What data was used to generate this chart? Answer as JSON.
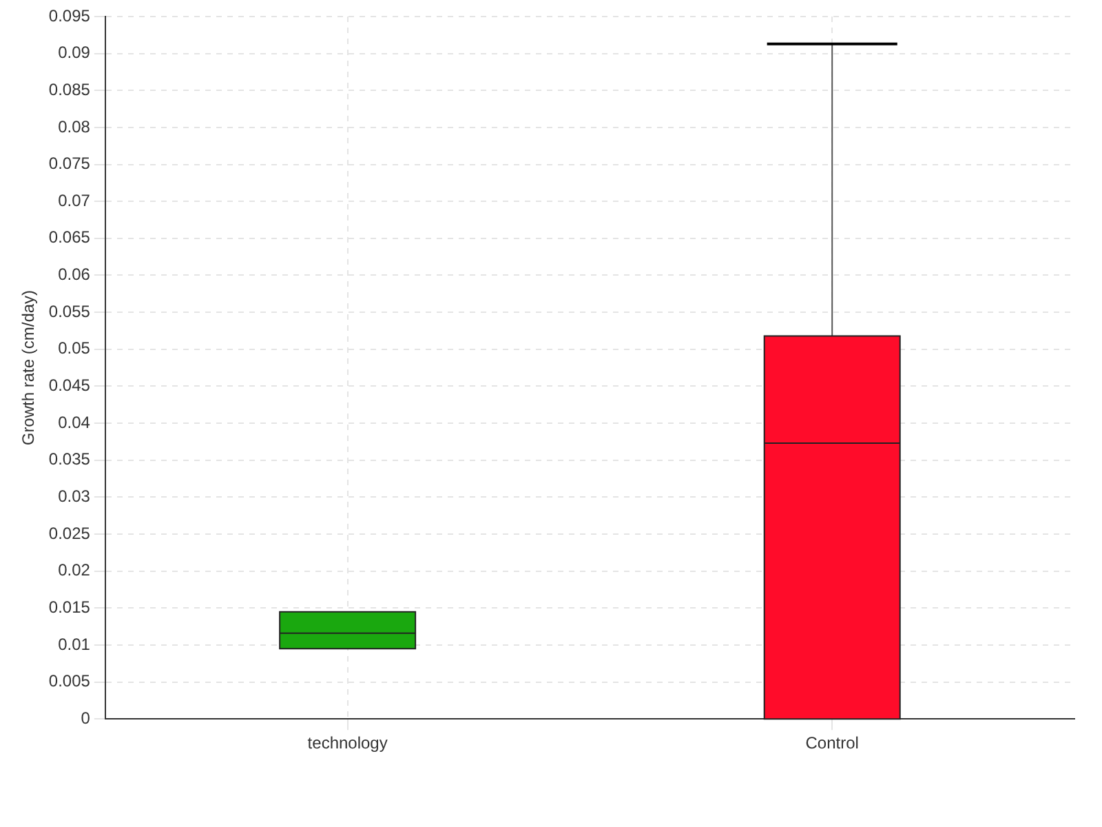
{
  "chart_data": {
    "type": "box",
    "ylabel": "Growth rate (cm/day)",
    "categories": [
      "technology",
      "Control"
    ],
    "colors": [
      "#1aa80f",
      "#ff0c2a"
    ],
    "boxes": [
      {
        "low": 0.0095,
        "q1": 0.0095,
        "median": 0.0116,
        "q3": 0.0145,
        "high": 0.0145
      },
      {
        "low": 0,
        "q1": 0,
        "median": 0.0373,
        "q3": 0.0518,
        "high": 0.0913
      }
    ],
    "ylim": [
      0,
      0.095
    ],
    "yticks": [
      0,
      0.005,
      0.01,
      0.015,
      0.02,
      0.025,
      0.03,
      0.035,
      0.04,
      0.045,
      0.05,
      0.055,
      0.06,
      0.065,
      0.07,
      0.075,
      0.08,
      0.085,
      0.09,
      0.095
    ],
    "grid": true,
    "legend": false
  }
}
